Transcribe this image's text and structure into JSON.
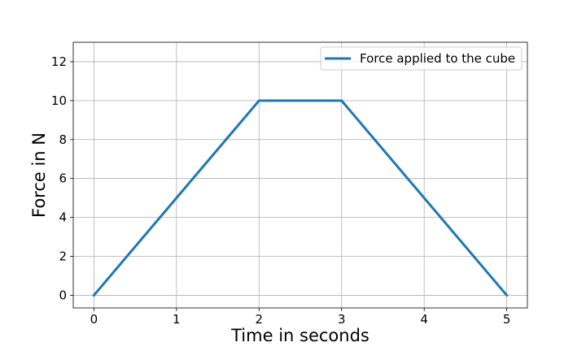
{
  "chart_data": {
    "type": "line",
    "xlabel": "Time in seconds",
    "ylabel": "Force in N",
    "xlim": [
      -0.25,
      5.25
    ],
    "ylim": [
      -0.65,
      13
    ],
    "x_ticks": [
      0,
      1,
      2,
      3,
      4,
      5
    ],
    "y_ticks": [
      0,
      2,
      4,
      6,
      8,
      10,
      12
    ],
    "grid": true,
    "legend_position": "top-right",
    "series": [
      {
        "name": "Force applied to the cube",
        "color": "#1f77b4",
        "x": [
          0,
          2,
          3,
          5
        ],
        "y": [
          0,
          10,
          10,
          0
        ]
      }
    ]
  }
}
